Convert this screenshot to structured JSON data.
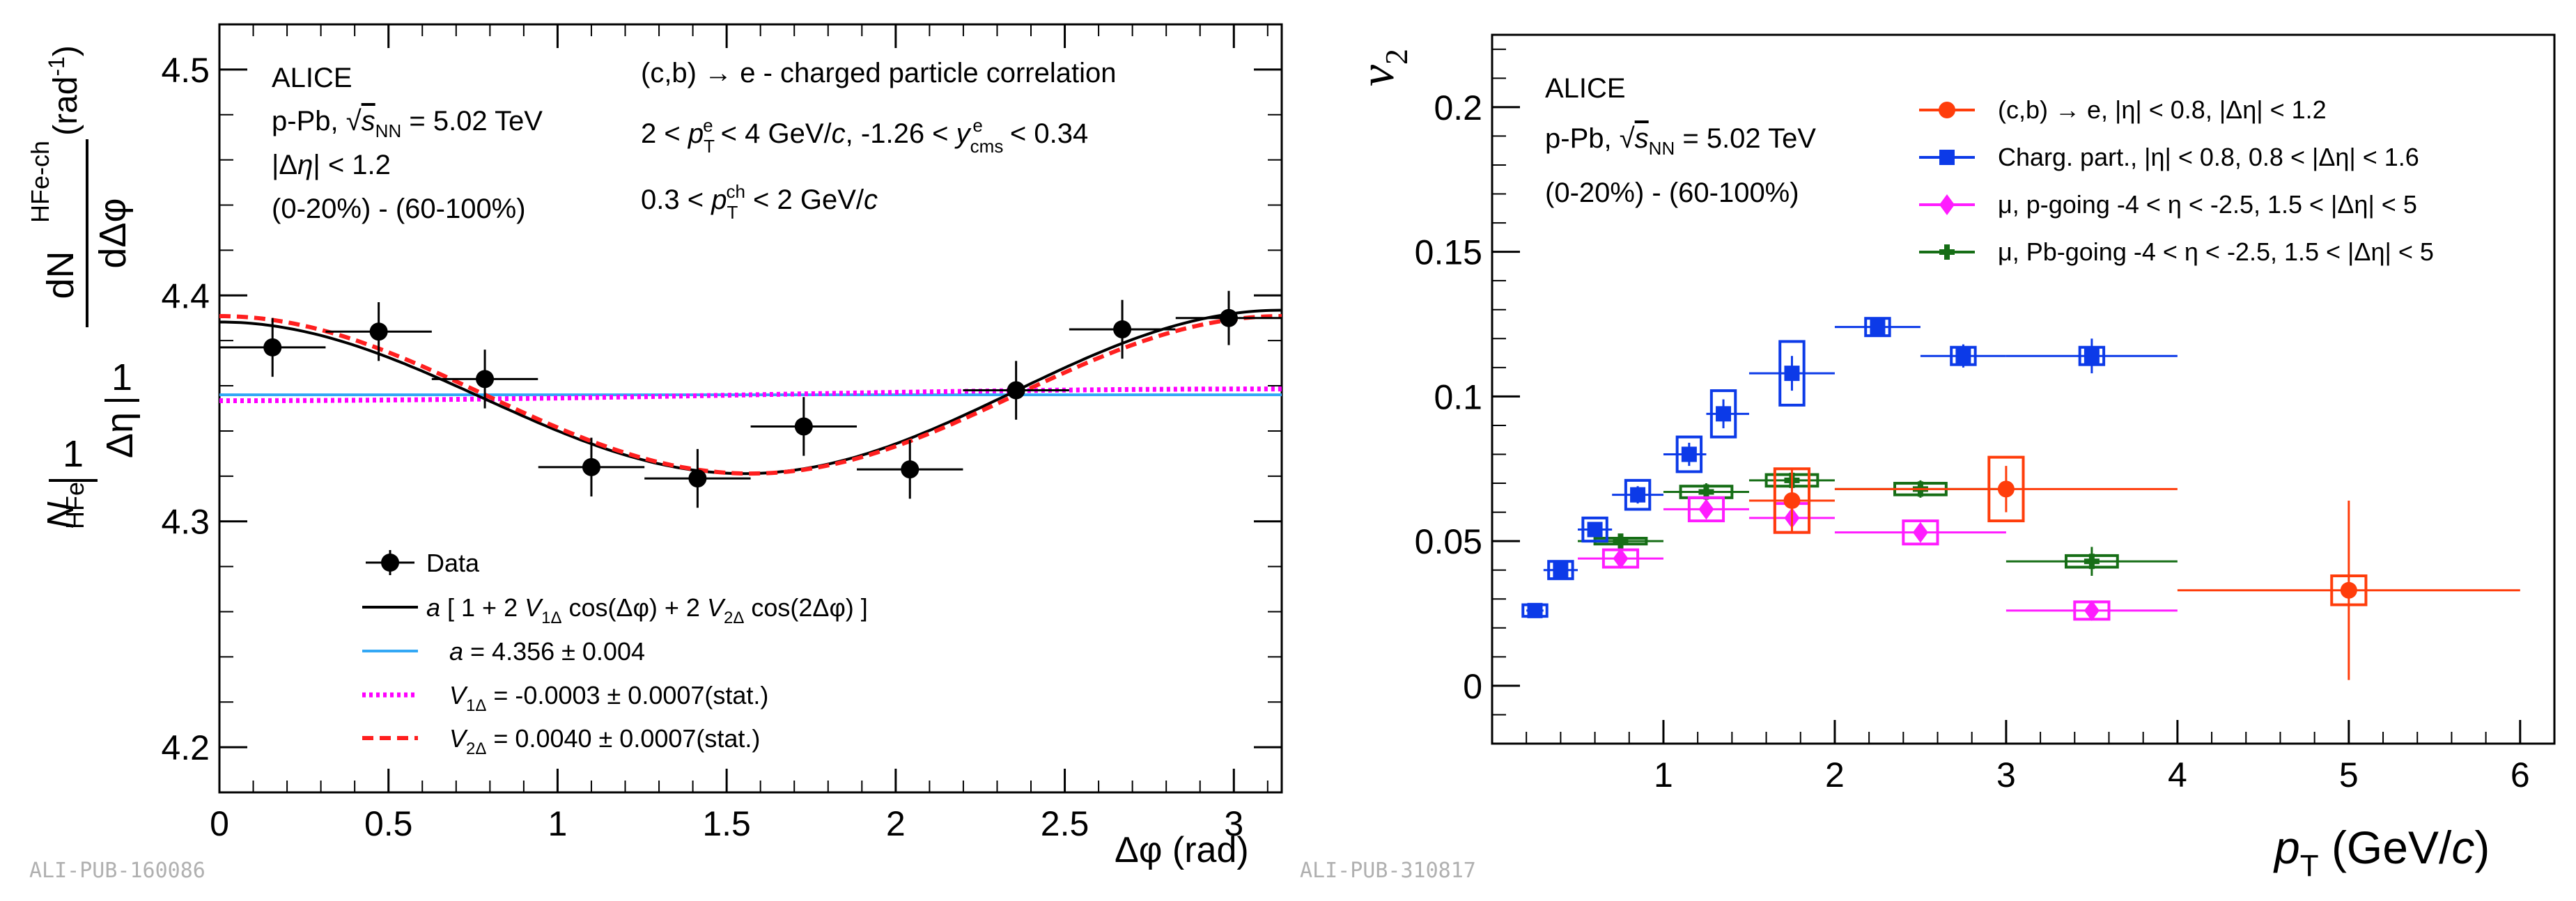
{
  "chart_data": [
    {
      "type": "scatter",
      "panel": "left",
      "xlabel": "Δφ (rad)",
      "ylabel_prefix": "1",
      "ylabel_denom": "NHFe",
      "ylabel_mid": "1 / Δη",
      "ylabel_frac": "dN HFe-ch / dΔφ",
      "ylabel_unit": "(rad-1)",
      "xlim": [
        0,
        3.1416
      ],
      "ylim": [
        4.18,
        4.52
      ],
      "xticks": [
        "0",
        "0.5",
        "1",
        "1.5",
        "2",
        "2.5",
        "3"
      ],
      "yticks": [
        "4.2",
        "4.3",
        "4.4",
        "4.5"
      ],
      "annotations": {
        "experiment": "ALICE",
        "system": "p-Pb, √sNN = 5.02 TeV",
        "deta": "|Δη| < 1.2",
        "centrality": "(0-20%) - (60-100%)",
        "title": "(c,b) → e - charged particle correlation",
        "cut1": "2 < pTe < 4 GeV/c, -1.26 < ycmse < 0.34",
        "cut2": "0.3 < pTch < 2 GeV/c"
      },
      "series": [
        {
          "name": "Data",
          "color": "#000000",
          "x": [
            0.157,
            0.471,
            0.785,
            1.1,
            1.414,
            1.728,
            2.042,
            2.356,
            2.67,
            2.985
          ],
          "y": [
            4.377,
            4.384,
            4.363,
            4.324,
            4.319,
            4.342,
            4.323,
            4.358,
            4.385,
            4.39
          ],
          "xerr": 0.157,
          "yerr": [
            0.013,
            0.013,
            0.013,
            0.013,
            0.013,
            0.013,
            0.013,
            0.013,
            0.013,
            0.012
          ]
        }
      ],
      "fits": [
        {
          "name": "a [ 1 + 2 V1Δ cos(Δφ) + 2 V2Δ cos(2Δφ) ]",
          "a": 4.356,
          "v1": -0.0003,
          "v2": 0.004,
          "color": "#000000",
          "style": "solid"
        },
        {
          "name": "a = 4.356 ± 0.004",
          "a": 4.356,
          "v1": 0,
          "v2": 0,
          "color": "#33a8f5",
          "style": "solid"
        },
        {
          "name": "V1Δ = -0.0003 ± 0.0007(stat.)",
          "a": 4.356,
          "v1": -0.0003,
          "v2": 0,
          "color": "#ff00ff",
          "style": "dotted"
        },
        {
          "name": "V2Δ = 0.0040 ± 0.0007(stat.)",
          "a": 4.356,
          "v1": 0,
          "v2": 0.004,
          "color": "#ff1f1f",
          "style": "dashed"
        }
      ],
      "legend": [
        "Data",
        "a [ 1 + 2 V1Δ cos(Δφ) + 2 V2Δ cos(2Δφ) ]",
        "a = 4.356 ± 0.004",
        "V1Δ = -0.0003 ± 0.0007(stat.)",
        "V2Δ = 0.0040 ± 0.0007(stat.)"
      ],
      "pub_label": "ALI-PUB-160086"
    },
    {
      "type": "scatter",
      "panel": "right",
      "xlabel": "pT (GeV/c)",
      "ylabel": "v2",
      "xlim": [
        0,
        6.2
      ],
      "ylim": [
        -0.02,
        0.225
      ],
      "xticks": [
        "1",
        "2",
        "3",
        "4",
        "5",
        "6"
      ],
      "yticks": [
        "0",
        "0.05",
        "0.1",
        "0.15",
        "0.2"
      ],
      "annotations": {
        "experiment": "ALICE",
        "system": "p-Pb, √sNN = 5.02 TeV",
        "centrality": "(0-20%) - (60-100%)"
      },
      "series": [
        {
          "name": "(c,b) → e, |η| < 0.8, |Δη| < 1.2",
          "color": "#ff3d0b",
          "marker": "circle",
          "x": [
            1.75,
            3.0,
            5.0
          ],
          "y": [
            0.064,
            0.068,
            0.033
          ],
          "xlo": [
            1.5,
            2.0,
            4.0
          ],
          "xhi": [
            2.0,
            4.0,
            6.0
          ],
          "yerr": [
            0.011,
            0.008,
            0.031
          ],
          "syst": [
            0.011,
            0.011,
            0.005
          ]
        },
        {
          "name": "Charg. part., |η| < 0.8, 0.8 < |Δη| < 1.6",
          "color": "#0c3ae8",
          "marker": "square",
          "x": [
            0.25,
            0.4,
            0.6,
            0.85,
            1.15,
            1.35,
            1.75,
            2.25,
            2.75,
            3.5
          ],
          "y": [
            0.026,
            0.04,
            0.054,
            0.066,
            0.08,
            0.094,
            0.108,
            0.124,
            0.114,
            0.114
          ],
          "xlo": [
            0.2,
            0.3,
            0.5,
            0.7,
            1.0,
            1.25,
            1.5,
            2.0,
            2.5,
            3.0
          ],
          "xhi": [
            0.3,
            0.5,
            0.7,
            1.0,
            1.25,
            1.5,
            2.0,
            2.5,
            3.0,
            4.0
          ],
          "yerr": [
            0.001,
            0.002,
            0.002,
            0.003,
            0.004,
            0.005,
            0.006,
            0.003,
            0.004,
            0.006
          ],
          "syst": [
            0.002,
            0.003,
            0.004,
            0.005,
            0.006,
            0.008,
            0.011,
            0.003,
            0.003,
            0.003
          ]
        },
        {
          "name": "μ, p-going -4 < η < -2.5, 1.5 < |Δη| < 5",
          "color": "#ff1cff",
          "marker": "diamond",
          "x": [
            0.75,
            1.25,
            1.75,
            2.5,
            3.5
          ],
          "y": [
            0.044,
            0.061,
            0.058,
            0.053,
            0.026
          ],
          "xlo": [
            0.5,
            1.0,
            1.5,
            2.0,
            3.0
          ],
          "xhi": [
            1.0,
            1.5,
            2.0,
            3.0,
            4.0
          ],
          "yerr": [
            0.002,
            0.003,
            0.003,
            0.003,
            0.003
          ],
          "syst": [
            0.003,
            0.004,
            0.005,
            0.004,
            0.003
          ]
        },
        {
          "name": "μ, Pb-going -4 < η < -2.5, 1.5 < |Δη| < 5",
          "color": "#166e16",
          "marker": "cross",
          "x": [
            0.75,
            1.25,
            1.75,
            2.5,
            3.5
          ],
          "y": [
            0.05,
            0.067,
            0.071,
            0.068,
            0.043
          ],
          "xlo": [
            0.5,
            1.0,
            1.5,
            2.0,
            3.0
          ],
          "xhi": [
            1.0,
            1.5,
            2.0,
            3.0,
            4.0
          ],
          "yerr": [
            0.002,
            0.003,
            0.003,
            0.003,
            0.005
          ],
          "syst": [
            0.001,
            0.002,
            0.002,
            0.002,
            0.002
          ]
        }
      ],
      "legend": [
        "(c,b) → e, |η| < 0.8, |Δη| < 1.2",
        "Charg. part., |η| < 0.8, 0.8 < |Δη| < 1.6",
        "μ, p-going -4 < η < -2.5, 1.5 < |Δη| < 5",
        "μ, Pb-going -4 < η < -2.5, 1.5 < |Δη| < 5"
      ],
      "pub_label": "ALI-PUB-310817"
    }
  ]
}
